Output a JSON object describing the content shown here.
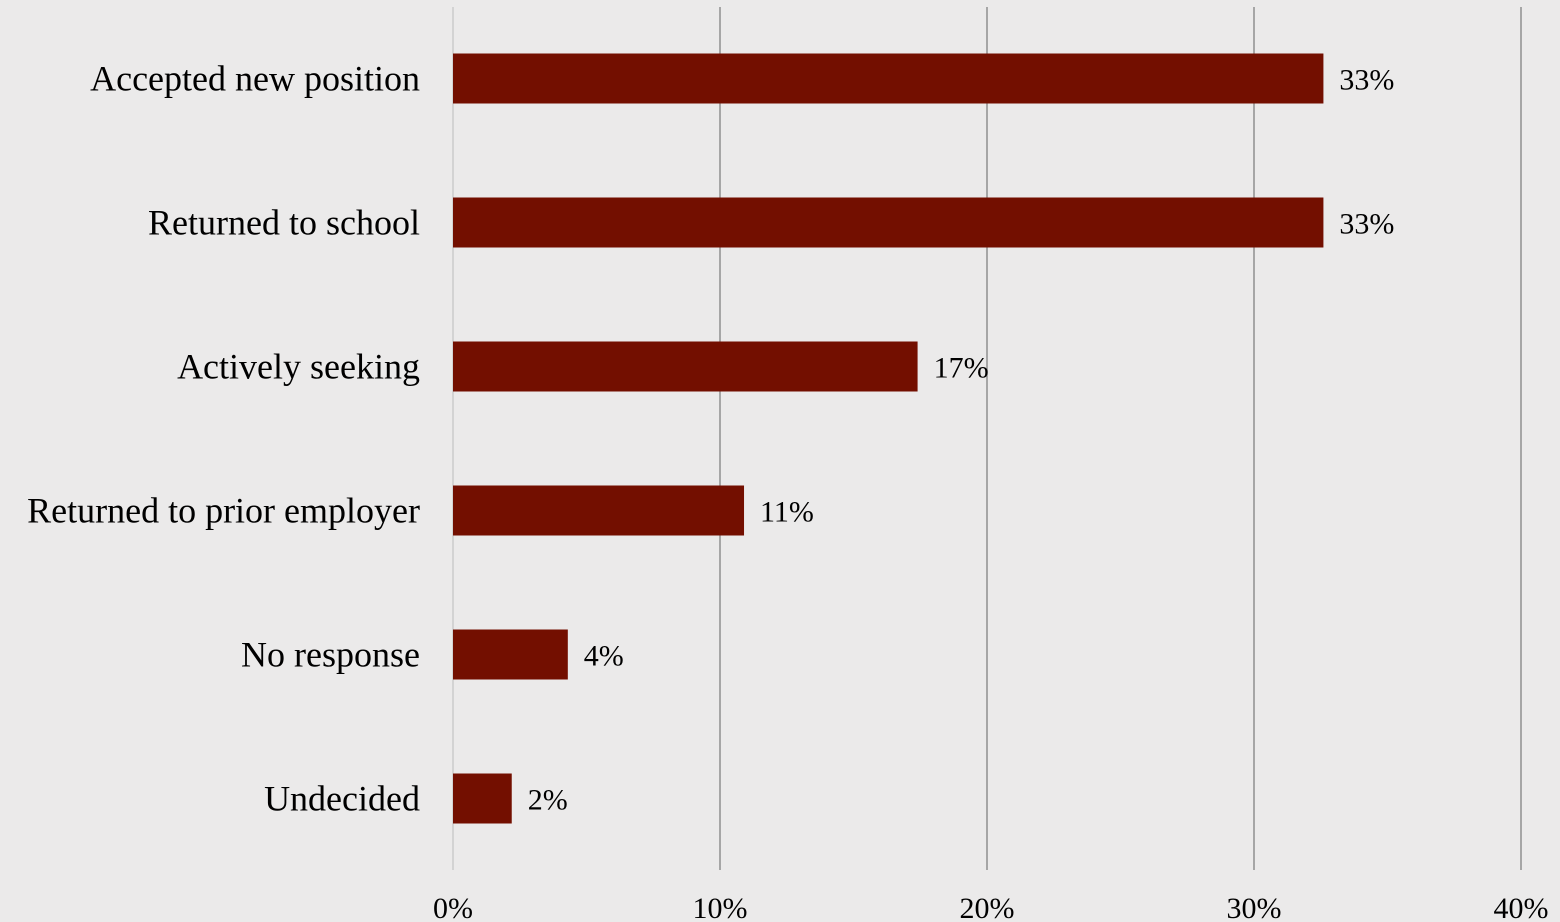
{
  "chart_data": {
    "type": "bar",
    "orientation": "horizontal",
    "categories": [
      "Accepted new position",
      "Returned to school",
      "Actively seeking",
      "Returned to prior employer",
      "No response",
      "Undecided"
    ],
    "values": [
      32.6,
      32.6,
      17.4,
      10.9,
      4.3,
      2.2
    ],
    "data_labels": [
      "33%",
      "33%",
      "17%",
      "11%",
      "4%",
      "2%"
    ],
    "xlim": [
      0,
      40
    ],
    "xticks": [
      0,
      10,
      20,
      30,
      40
    ],
    "xtick_labels": [
      "0%",
      "10%",
      "20%",
      "30%",
      "40%"
    ],
    "grid": true,
    "legend": "none",
    "title": "",
    "xlabel": "",
    "ylabel": "",
    "colors": {
      "bar": "#730f00",
      "background": "#ebeaea",
      "grid": "#a6a6a6",
      "zero_line": "#d3d3d3"
    }
  }
}
